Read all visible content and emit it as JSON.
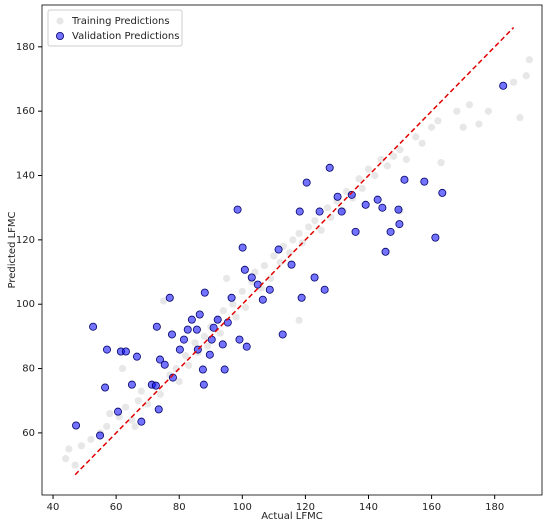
{
  "chart_data": {
    "type": "scatter",
    "xlabel": "Actual LFMC",
    "ylabel": "Predicted LFMC",
    "xlim": [
      36.5,
      195
    ],
    "ylim": [
      40.7,
      193
    ],
    "xticks": [
      40,
      60,
      80,
      100,
      120,
      140,
      160,
      180
    ],
    "yticks": [
      60,
      80,
      100,
      120,
      140,
      160,
      180
    ],
    "legend": "upper left",
    "reference_line": {
      "x": [
        47,
        186
      ],
      "y": [
        47,
        186
      ],
      "color": "#e00000"
    },
    "series": [
      {
        "name": "Training Predictions",
        "color": "#d3d3d3",
        "x": [
          44,
          45,
          47,
          49,
          52,
          55,
          57,
          58,
          61,
          63,
          65,
          67,
          68,
          70,
          72,
          74,
          75,
          77,
          79,
          80,
          82,
          83,
          85,
          86,
          88,
          89,
          90,
          92,
          93,
          94,
          95,
          97,
          98,
          100,
          101,
          103,
          104,
          106,
          107,
          109,
          110,
          112,
          113,
          115,
          116,
          118,
          119,
          121,
          123,
          125,
          127,
          128,
          130,
          132,
          133,
          135,
          137,
          138,
          140,
          142,
          144,
          146,
          148,
          150,
          152,
          155,
          157,
          160,
          162,
          163,
          168,
          170,
          172,
          175,
          178,
          186,
          188,
          190,
          191,
          62,
          66,
          118,
          150
        ],
        "values": [
          52,
          55,
          50,
          56,
          58,
          60,
          62,
          66,
          65,
          68,
          64,
          70,
          73,
          69,
          75,
          72,
          101,
          78,
          80,
          76,
          84,
          81,
          88,
          85,
          90,
          87,
          93,
          95,
          91,
          98,
          108,
          100,
          96,
          104,
          99,
          107,
          110,
          105,
          112,
          108,
          115,
          113,
          118,
          116,
          120,
          122,
          119,
          124,
          126,
          123,
          130,
          127,
          132,
          129,
          135,
          133,
          139,
          136,
          142,
          140,
          145,
          143,
          146,
          148,
          145,
          152,
          150,
          155,
          157,
          144,
          160,
          155,
          162,
          156,
          160,
          169,
          158,
          171,
          176,
          80,
          62,
          95,
          129
        ]
      },
      {
        "name": "Validation Predictions",
        "color": "#0000ff",
        "x": [
          47.3,
          52.7,
          54.9,
          57.1,
          56.5,
          61.5,
          63.1,
          60.6,
          65,
          66.6,
          68,
          71.3,
          72.6,
          73.9,
          72.9,
          75.4,
          77,
          78,
          77.7,
          73.5,
          80.2,
          81.5,
          82.7,
          84,
          85.6,
          86.5,
          88.1,
          87.5,
          87.8,
          89.7,
          90.3,
          92.2,
          93.8,
          95.4,
          94.4,
          96.6,
          98.5,
          99.1,
          100.1,
          101.4,
          103,
          104.9,
          106.5,
          108.7,
          111.5,
          112.8,
          115.6,
          118.2,
          118.8,
          120.4,
          122.9,
          124.5,
          126.1,
          127.7,
          130.2,
          131.5,
          134.7,
          135.9,
          139.1,
          142.9,
          144.4,
          145.4,
          147,
          149.5,
          151.4,
          157.7,
          161.2,
          163.4,
          149.8,
          182.7,
          100.8,
          90.9,
          85.9
        ],
        "values": [
          62.3,
          93,
          59.2,
          85.9,
          74.1,
          85.3,
          85.3,
          66.6,
          75,
          83.7,
          63.5,
          75,
          74.7,
          82.8,
          93,
          81.2,
          102,
          77.2,
          90.6,
          67.3,
          85.9,
          89,
          92.1,
          95.2,
          92.1,
          96.8,
          103.6,
          79.7,
          75,
          84.3,
          89,
          95.2,
          87.5,
          94.3,
          79.7,
          102,
          129.4,
          89,
          117.6,
          86.8,
          108.3,
          106.1,
          101.4,
          104.5,
          117,
          90.6,
          112.3,
          128.8,
          102,
          137.8,
          108.3,
          128.8,
          104.5,
          142.4,
          133.4,
          128.8,
          134,
          122.5,
          130.9,
          132.5,
          130,
          116.3,
          122.5,
          129.4,
          138.7,
          138.1,
          120.7,
          134.6,
          124.9,
          167.9,
          110.7,
          92.7,
          85.9
        ]
      }
    ]
  }
}
